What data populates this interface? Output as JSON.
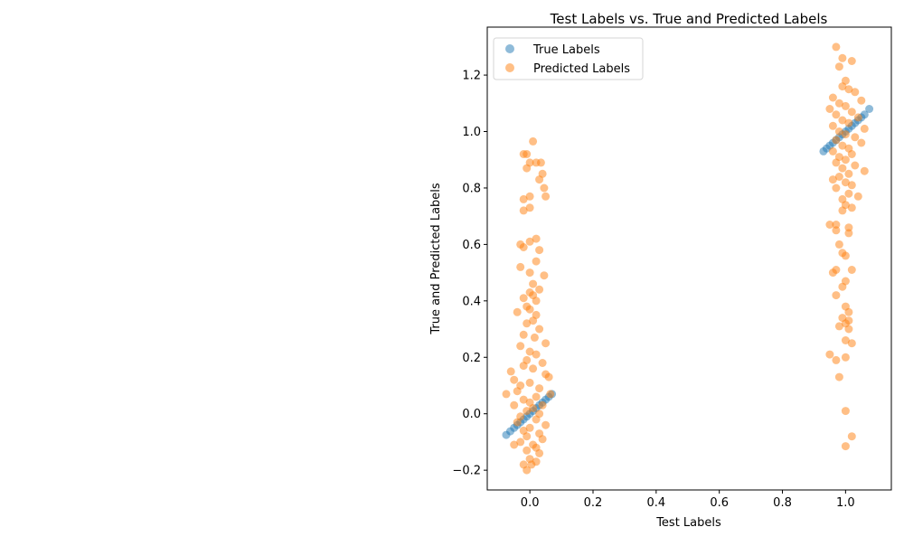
{
  "chart_data": {
    "type": "scatter",
    "title": "Test Labels vs. True and Predicted Labels",
    "xlabel": "Test Labels",
    "ylabel": "True and Predicted Labels",
    "xlim": [
      -0.135,
      1.145
    ],
    "ylim": [
      -0.27,
      1.37
    ],
    "xticks": [
      0.0,
      0.2,
      0.4,
      0.6,
      0.8,
      1.0
    ],
    "xtick_labels": [
      "0.0",
      "0.2",
      "0.4",
      "0.6",
      "0.8",
      "1.0"
    ],
    "yticks": [
      -0.2,
      0.0,
      0.2,
      0.4,
      0.6,
      0.8,
      1.0,
      1.2
    ],
    "ytick_labels": [
      "−0.2",
      "0.0",
      "0.2",
      "0.4",
      "0.6",
      "0.8",
      "1.0",
      "1.2"
    ],
    "grid": false,
    "legend_position": "upper-left",
    "series": [
      {
        "name": "True Labels",
        "color": "#1f77b4",
        "points": [
          [
            -0.075,
            -0.075
          ],
          [
            -0.062,
            -0.062
          ],
          [
            -0.05,
            -0.05
          ],
          [
            -0.04,
            -0.04
          ],
          [
            -0.03,
            -0.03
          ],
          [
            -0.02,
            -0.02
          ],
          [
            -0.01,
            -0.01
          ],
          [
            0.0,
            0.0
          ],
          [
            0.01,
            0.01
          ],
          [
            0.02,
            0.02
          ],
          [
            0.03,
            0.03
          ],
          [
            0.04,
            0.04
          ],
          [
            0.05,
            0.05
          ],
          [
            0.06,
            0.06
          ],
          [
            0.07,
            0.07
          ],
          [
            0.93,
            0.93
          ],
          [
            0.94,
            0.94
          ],
          [
            0.95,
            0.95
          ],
          [
            0.96,
            0.96
          ],
          [
            0.97,
            0.97
          ],
          [
            0.98,
            0.98
          ],
          [
            0.99,
            0.99
          ],
          [
            1.0,
            1.0
          ],
          [
            1.01,
            1.01
          ],
          [
            1.02,
            1.02
          ],
          [
            1.03,
            1.03
          ],
          [
            1.04,
            1.04
          ],
          [
            1.05,
            1.05
          ],
          [
            1.06,
            1.06
          ],
          [
            1.075,
            1.08
          ]
        ]
      },
      {
        "name": "Predicted Labels",
        "color": "#ff7f0e",
        "points": [
          [
            -0.02,
            0.92
          ],
          [
            -0.01,
            0.92
          ],
          [
            0.0,
            0.89
          ],
          [
            0.01,
            0.965
          ],
          [
            0.02,
            0.89
          ],
          [
            0.035,
            0.89
          ],
          [
            0.04,
            0.85
          ],
          [
            0.03,
            0.83
          ],
          [
            0.045,
            0.8
          ],
          [
            0.05,
            0.77
          ],
          [
            -0.01,
            0.87
          ],
          [
            -0.02,
            0.76
          ],
          [
            0.0,
            0.77
          ],
          [
            -0.02,
            0.72
          ],
          [
            0.0,
            0.73
          ],
          [
            -0.03,
            0.6
          ],
          [
            -0.02,
            0.59
          ],
          [
            0.0,
            0.61
          ],
          [
            0.02,
            0.62
          ],
          [
            0.03,
            0.58
          ],
          [
            0.02,
            0.54
          ],
          [
            -0.03,
            0.52
          ],
          [
            0.0,
            0.5
          ],
          [
            0.045,
            0.49
          ],
          [
            0.01,
            0.46
          ],
          [
            0.0,
            0.43
          ],
          [
            0.01,
            0.42
          ],
          [
            0.02,
            0.4
          ],
          [
            0.03,
            0.44
          ],
          [
            -0.02,
            0.41
          ],
          [
            -0.01,
            0.38
          ],
          [
            0.0,
            0.37
          ],
          [
            0.02,
            0.35
          ],
          [
            -0.04,
            0.36
          ],
          [
            0.01,
            0.33
          ],
          [
            -0.01,
            0.32
          ],
          [
            0.03,
            0.3
          ],
          [
            -0.02,
            0.28
          ],
          [
            0.015,
            0.27
          ],
          [
            0.05,
            0.25
          ],
          [
            -0.03,
            0.24
          ],
          [
            0.0,
            0.22
          ],
          [
            0.02,
            0.21
          ],
          [
            -0.01,
            0.19
          ],
          [
            0.04,
            0.18
          ],
          [
            -0.02,
            0.17
          ],
          [
            0.01,
            0.16
          ],
          [
            -0.06,
            0.15
          ],
          [
            0.05,
            0.14
          ],
          [
            0.06,
            0.13
          ],
          [
            -0.05,
            0.12
          ],
          [
            0.0,
            0.11
          ],
          [
            -0.03,
            0.1
          ],
          [
            0.03,
            0.09
          ],
          [
            -0.04,
            0.08
          ],
          [
            -0.075,
            0.07
          ],
          [
            0.065,
            0.07
          ],
          [
            0.02,
            0.06
          ],
          [
            -0.02,
            0.05
          ],
          [
            0.0,
            0.04
          ],
          [
            0.04,
            0.03
          ],
          [
            -0.05,
            0.03
          ],
          [
            0.01,
            0.02
          ],
          [
            -0.01,
            0.01
          ],
          [
            0.03,
            0.0
          ],
          [
            -0.03,
            -0.01
          ],
          [
            0.02,
            -0.02
          ],
          [
            -0.04,
            -0.03
          ],
          [
            0.05,
            -0.04
          ],
          [
            0.0,
            -0.05
          ],
          [
            -0.02,
            -0.06
          ],
          [
            0.03,
            -0.07
          ],
          [
            -0.01,
            -0.08
          ],
          [
            0.04,
            -0.09
          ],
          [
            -0.03,
            -0.1
          ],
          [
            0.01,
            -0.11
          ],
          [
            -0.05,
            -0.11
          ],
          [
            0.02,
            -0.12
          ],
          [
            -0.01,
            -0.13
          ],
          [
            0.03,
            -0.14
          ],
          [
            0.0,
            -0.16
          ],
          [
            0.02,
            -0.17
          ],
          [
            -0.02,
            -0.18
          ],
          [
            0.005,
            -0.18
          ],
          [
            -0.01,
            -0.2
          ],
          [
            0.97,
            1.3
          ],
          [
            0.99,
            1.26
          ],
          [
            1.02,
            1.25
          ],
          [
            0.98,
            1.23
          ],
          [
            1.0,
            1.18
          ],
          [
            0.99,
            1.16
          ],
          [
            1.01,
            1.15
          ],
          [
            1.03,
            1.14
          ],
          [
            0.96,
            1.12
          ],
          [
            1.05,
            1.11
          ],
          [
            0.98,
            1.1
          ],
          [
            1.0,
            1.09
          ],
          [
            0.95,
            1.08
          ],
          [
            1.02,
            1.07
          ],
          [
            0.97,
            1.06
          ],
          [
            1.04,
            1.05
          ],
          [
            0.99,
            1.04
          ],
          [
            1.01,
            1.03
          ],
          [
            0.96,
            1.02
          ],
          [
            1.06,
            1.01
          ],
          [
            0.98,
            1.0
          ],
          [
            1.0,
            0.99
          ],
          [
            1.03,
            0.98
          ],
          [
            0.97,
            0.97
          ],
          [
            1.05,
            0.96
          ],
          [
            0.99,
            0.95
          ],
          [
            1.01,
            0.94
          ],
          [
            0.96,
            0.93
          ],
          [
            1.02,
            0.92
          ],
          [
            0.98,
            0.91
          ],
          [
            1.0,
            0.9
          ],
          [
            0.97,
            0.89
          ],
          [
            1.03,
            0.88
          ],
          [
            0.99,
            0.87
          ],
          [
            1.06,
            0.86
          ],
          [
            1.01,
            0.85
          ],
          [
            0.98,
            0.84
          ],
          [
            0.96,
            0.83
          ],
          [
            1.0,
            0.82
          ],
          [
            1.02,
            0.81
          ],
          [
            0.97,
            0.8
          ],
          [
            1.01,
            0.78
          ],
          [
            1.04,
            0.77
          ],
          [
            0.99,
            0.76
          ],
          [
            1.0,
            0.74
          ],
          [
            1.02,
            0.73
          ],
          [
            0.99,
            0.72
          ],
          [
            0.95,
            0.67
          ],
          [
            0.97,
            0.67
          ],
          [
            1.01,
            0.66
          ],
          [
            0.97,
            0.65
          ],
          [
            1.01,
            0.64
          ],
          [
            0.98,
            0.6
          ],
          [
            0.99,
            0.57
          ],
          [
            1.0,
            0.56
          ],
          [
            0.97,
            0.51
          ],
          [
            1.02,
            0.51
          ],
          [
            0.96,
            0.5
          ],
          [
            1.0,
            0.47
          ],
          [
            0.99,
            0.45
          ],
          [
            0.97,
            0.42
          ],
          [
            1.0,
            0.38
          ],
          [
            1.01,
            0.36
          ],
          [
            0.99,
            0.34
          ],
          [
            1.01,
            0.33
          ],
          [
            1.0,
            0.32
          ],
          [
            0.98,
            0.31
          ],
          [
            1.01,
            0.3
          ],
          [
            1.0,
            0.26
          ],
          [
            1.02,
            0.25
          ],
          [
            0.95,
            0.21
          ],
          [
            1.0,
            0.2
          ],
          [
            0.97,
            0.19
          ],
          [
            0.98,
            0.13
          ],
          [
            1.0,
            0.01
          ],
          [
            1.02,
            -0.08
          ],
          [
            1.0,
            -0.115
          ]
        ]
      }
    ]
  }
}
